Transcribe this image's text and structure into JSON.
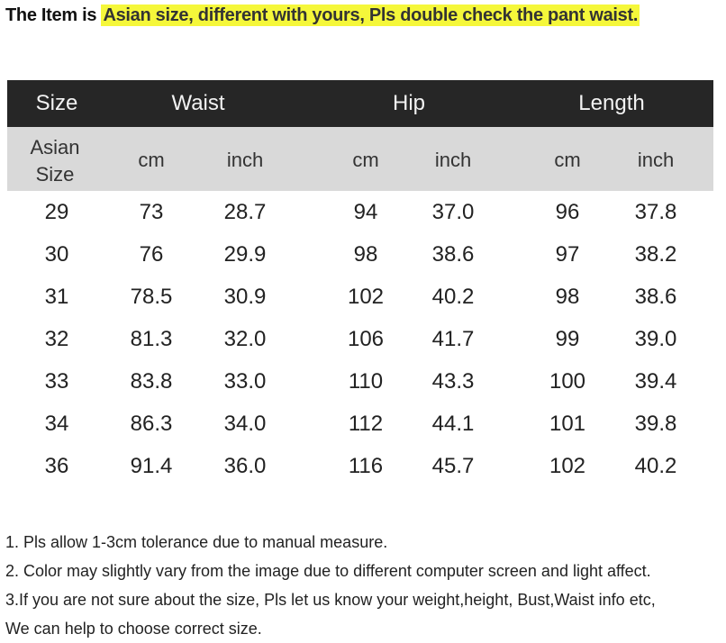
{
  "title": {
    "prefix": "The Item is ",
    "highlight": "Asian size, different with yours, Pls double check the pant waist.",
    "highlight_color": "#f5f73a"
  },
  "table": {
    "header": [
      "Size",
      "Waist",
      "Hip",
      "Length"
    ],
    "subheader": [
      "Asian Size",
      "cm",
      "inch",
      "cm",
      "inch",
      "cm",
      "inch"
    ],
    "rows": [
      [
        "29",
        "73",
        "28.7",
        "94",
        "37.0",
        "96",
        "37.8"
      ],
      [
        "30",
        "76",
        "29.9",
        "98",
        "38.6",
        "97",
        "38.2"
      ],
      [
        "31",
        "78.5",
        "30.9",
        "102",
        "40.2",
        "98",
        "38.6"
      ],
      [
        "32",
        "81.3",
        "32.0",
        "106",
        "41.7",
        "99",
        "39.0"
      ],
      [
        "33",
        "83.8",
        "33.0",
        "110",
        "43.3",
        "100",
        "39.4"
      ],
      [
        "34",
        "86.3",
        "34.0",
        "112",
        "44.1",
        "101",
        "39.8"
      ],
      [
        "36",
        "91.4",
        "36.0",
        "116",
        "45.7",
        "102",
        "40.2"
      ]
    ]
  },
  "notes": [
    "1. Pls allow 1-3cm tolerance due to manual measure.",
    "2. Color may slightly vary from the image due to different computer screen and light affect.",
    "3.If you are not sure about the size, Pls let us know your weight,height, Bust,Waist info etc,",
    "We can help to choose correct size."
  ]
}
